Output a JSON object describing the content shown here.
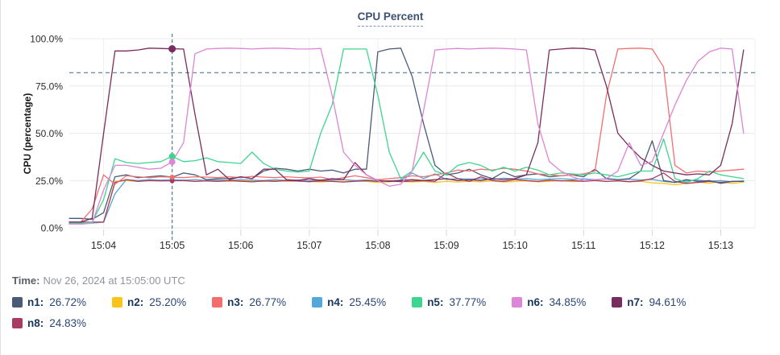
{
  "header": {
    "title": "CPU Percent"
  },
  "footer": {
    "time_label": "Time:",
    "time_value": "Nov 26, 2024 at 15:05:00 UTC"
  },
  "chart_data": {
    "type": "line",
    "title": "CPU Percent",
    "xlabel": "",
    "ylabel": "CPU (percentage)",
    "ylim": [
      0,
      100
    ],
    "grid": true,
    "legend_position": "bottom",
    "y_ticks": [
      {
        "value": 100,
        "label": "100.0%"
      },
      {
        "value": 75,
        "label": "75.0%"
      },
      {
        "value": 50,
        "label": "50.0%"
      },
      {
        "value": 25,
        "label": "25.0%"
      },
      {
        "value": 0,
        "label": "0.0%"
      }
    ],
    "x_ticks": [
      {
        "seconds": 30,
        "label": "15:04"
      },
      {
        "seconds": 90,
        "label": "15:05"
      },
      {
        "seconds": 150,
        "label": "15:06"
      },
      {
        "seconds": 210,
        "label": "15:07"
      },
      {
        "seconds": 270,
        "label": "15:08"
      },
      {
        "seconds": 330,
        "label": "15:09"
      },
      {
        "seconds": 390,
        "label": "15:10"
      },
      {
        "seconds": 450,
        "label": "15:11"
      },
      {
        "seconds": 510,
        "label": "15:12"
      },
      {
        "seconds": 570,
        "label": "15:13"
      }
    ],
    "x_range_seconds": [
      0,
      600
    ],
    "sample_step_seconds": 10,
    "threshold_percent": 82,
    "crosshair": {
      "seconds": 90,
      "time": "15:05:00",
      "color": "#4e7b90"
    },
    "series": [
      {
        "name": "n1",
        "color": "#4a5a78",
        "legend_value": "26.72%",
        "values": [
          5,
          5,
          4.5,
          8,
          27,
          28,
          26.5,
          27,
          27.5,
          26.72,
          29,
          28,
          25.5,
          26,
          26,
          27,
          26,
          30,
          31.5,
          31,
          30,
          31,
          30,
          30.5,
          29,
          31,
          31,
          93,
          94.5,
          95,
          80,
          55,
          33,
          28,
          29,
          31,
          28,
          26,
          29.5,
          27,
          28,
          28.5,
          27,
          27.5,
          28,
          27,
          31,
          26,
          25.5,
          26,
          30,
          46,
          25,
          24,
          25.5,
          24.5,
          25,
          23.5,
          24.5,
          24.5
        ]
      },
      {
        "name": "n2",
        "color": "#fcc419",
        "legend_value": "25.20%",
        "values": [
          2.5,
          2.5,
          2.5,
          3,
          24.5,
          25,
          24.5,
          25,
          24.8,
          25.2,
          25,
          24.5,
          25,
          24.8,
          24.5,
          25,
          24.7,
          24.5,
          25,
          24.6,
          24.8,
          24.5,
          24.2,
          24.6,
          24.4,
          24.8,
          24.5,
          24,
          24.3,
          24.6,
          24.2,
          24.5,
          24,
          24.5,
          24.2,
          24.6,
          24.3,
          24.8,
          24.2,
          24.5,
          24.8,
          24.3,
          24.6,
          25,
          24.4,
          24.7,
          25.2,
          24.5,
          24.8,
          24.3,
          24.6,
          23.8,
          23.5,
          22.8,
          23.5,
          24.2,
          23.6,
          24.3,
          23.4,
          24.2
        ]
      },
      {
        "name": "n3",
        "color": "#f46e6e",
        "legend_value": "26.77%",
        "values": [
          2,
          3,
          10,
          28,
          23,
          27.5,
          27,
          26.5,
          27,
          26.77,
          26.5,
          27,
          26.8,
          26.5,
          27,
          26.5,
          27.2,
          26.8,
          26.5,
          27,
          26.6,
          26.4,
          26.8,
          25.5,
          26.5,
          27.5,
          26.5,
          25.5,
          26,
          26.5,
          27.5,
          27,
          28,
          29,
          30.5,
          30,
          31,
          30.5,
          31.5,
          31,
          30,
          28.5,
          28,
          27.5,
          28,
          28.5,
          30,
          70,
          94.5,
          94.8,
          95,
          94.5,
          85,
          33,
          29,
          30,
          29.5,
          30,
          30.5,
          31
        ]
      },
      {
        "name": "n4",
        "color": "#54a7da",
        "legend_value": "25.45%",
        "values": [
          2,
          2,
          2.5,
          3,
          18,
          25.5,
          25,
          25.5,
          25.2,
          25.45,
          25.2,
          25.5,
          25,
          25.3,
          25,
          25.5,
          25.2,
          25,
          25.4,
          25.1,
          25.3,
          25,
          25.4,
          25.2,
          25.5,
          25,
          25.3,
          25,
          24.8,
          25.2,
          29,
          26,
          28.5,
          25.5,
          26,
          25.8,
          26,
          25.5,
          26.2,
          25.8,
          26,
          25.5,
          25.8,
          26,
          25.6,
          25.9,
          25.5,
          25.8,
          25.4,
          25.7,
          25.3,
          25.6,
          24.5,
          24,
          24.8,
          25.2,
          24.6,
          25,
          24.3,
          24.8
        ]
      },
      {
        "name": "n5",
        "color": "#3ed68f",
        "legend_value": "37.77%",
        "values": [
          2.5,
          2.5,
          3,
          15,
          36.5,
          34.5,
          34,
          34.5,
          35,
          37.77,
          35,
          35.5,
          37,
          35,
          34.5,
          34,
          40,
          34,
          31,
          30,
          29.5,
          30,
          50,
          65,
          94.5,
          94.5,
          94.5,
          70,
          40,
          26,
          30,
          40,
          30,
          28,
          33,
          34.5,
          33,
          30,
          32,
          30,
          32,
          30.5,
          28,
          29,
          28.5,
          28,
          29,
          28,
          27,
          28.5,
          30,
          30,
          47,
          26,
          24,
          26,
          30,
          28,
          27,
          26
        ]
      },
      {
        "name": "n6",
        "color": "#dd85d6",
        "legend_value": "34.85%",
        "values": [
          2,
          2,
          2.5,
          20,
          33,
          33,
          32,
          31,
          31.5,
          34.85,
          45,
          92,
          94.5,
          94.8,
          95,
          94.8,
          94.5,
          94.8,
          95,
          94.8,
          94.5,
          94.5,
          94.8,
          70,
          40,
          33,
          28,
          25,
          22,
          23,
          30,
          62,
          94,
          94.5,
          94.8,
          94.5,
          94.8,
          95,
          94.8,
          94.5,
          94,
          55,
          35,
          30,
          27,
          25,
          25.5,
          26,
          30,
          45,
          33,
          35,
          50,
          65,
          78,
          88,
          93,
          95,
          94.5,
          50
        ]
      },
      {
        "name": "n7",
        "color": "#7b2c5e",
        "legend_value": "94.61%",
        "values": [
          3,
          3,
          5,
          50,
          93.5,
          93.5,
          94,
          95,
          94.8,
          94.61,
          94.5,
          60,
          28,
          31,
          25.5,
          27,
          26,
          31,
          31,
          25.5,
          25,
          26,
          25,
          26,
          25.5,
          34.5,
          28,
          25,
          24.5,
          25,
          25.5,
          25,
          25.5,
          26,
          25,
          25.5,
          25,
          26,
          25.5,
          26,
          28,
          45,
          94,
          94.5,
          95,
          94.8,
          94,
          75,
          50,
          43,
          37,
          33,
          30,
          29,
          28,
          28.5,
          28,
          33,
          55,
          94
        ]
      },
      {
        "name": "n8",
        "color": "#a83b62",
        "legend_value": "24.83%",
        "values": [
          3,
          3,
          3,
          3,
          24,
          25.5,
          24.5,
          25,
          24.8,
          24.83,
          25,
          24.5,
          24.8,
          24.5,
          25,
          24.6,
          24.3,
          24.8,
          24.5,
          25,
          24.7,
          24.4,
          24.8,
          24.5,
          24.2,
          24.6,
          24.9,
          24.5,
          24.8,
          24.4,
          24.7,
          25,
          24.5,
          29,
          26,
          24.5,
          27,
          25,
          24.5,
          25.5,
          25,
          24.5,
          25.2,
          24.8,
          25,
          24.6,
          25,
          24.5,
          24.8,
          24.4,
          24.8,
          26,
          29,
          24.5,
          23.5,
          24,
          24.5,
          24,
          24.5,
          24.5
        ]
      }
    ]
  }
}
